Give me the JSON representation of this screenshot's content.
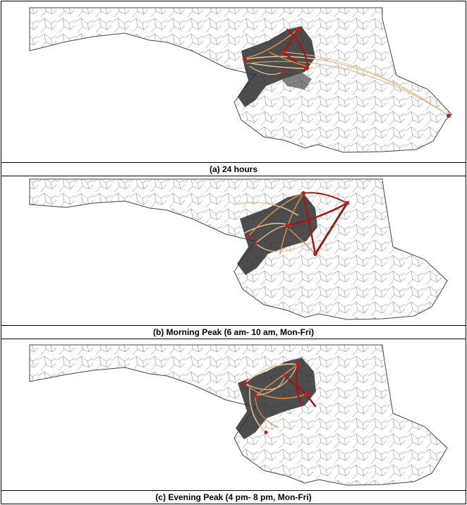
{
  "figure": {
    "panels": [
      {
        "id": "a",
        "caption": "(a)  24 hours"
      },
      {
        "id": "b",
        "caption": "(b)  Morning Peak (6 am- 10 am, Mon-Fri)"
      },
      {
        "id": "c",
        "caption": "(c)  Evening Peak (4 pm- 8 pm, Mon-Fri)"
      }
    ]
  },
  "colors": {
    "zone_border": "#6b6b6b",
    "urban_fill": "#3a3a3a",
    "flow_light": "#e8c49a",
    "flow_mid": "#d98c4a",
    "flow_dark": "#a51515",
    "node": "#c41e1e"
  }
}
